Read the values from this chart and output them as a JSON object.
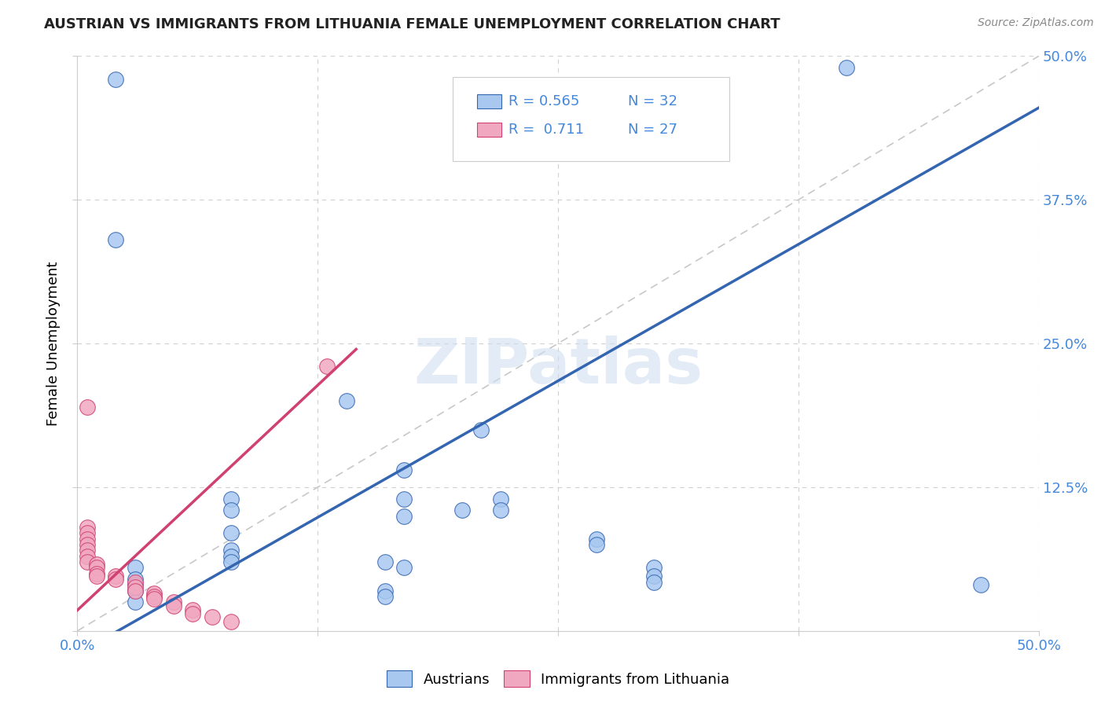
{
  "title": "AUSTRIAN VS IMMIGRANTS FROM LITHUANIA FEMALE UNEMPLOYMENT CORRELATION CHART",
  "source": "Source: ZipAtlas.com",
  "ylabel": "Female Unemployment",
  "xlim": [
    0.0,
    0.5
  ],
  "ylim": [
    0.0,
    0.5
  ],
  "blue_color": "#a8c8f0",
  "pink_color": "#f0a8c0",
  "blue_line_color": "#3465b0",
  "pink_line_color": "#d04070",
  "diagonal_color": "#c8c8c8",
  "r_blue": "0.565",
  "n_blue": "32",
  "r_pink": "0.711",
  "n_pink": "27",
  "blue_scatter": [
    [
      0.02,
      0.48
    ],
    [
      0.4,
      0.49
    ],
    [
      0.02,
      0.34
    ],
    [
      0.14,
      0.2
    ],
    [
      0.21,
      0.175
    ],
    [
      0.17,
      0.14
    ],
    [
      0.17,
      0.115
    ],
    [
      0.17,
      0.1
    ],
    [
      0.08,
      0.115
    ],
    [
      0.08,
      0.105
    ],
    [
      0.22,
      0.115
    ],
    [
      0.08,
      0.085
    ],
    [
      0.2,
      0.105
    ],
    [
      0.22,
      0.105
    ],
    [
      0.08,
      0.07
    ],
    [
      0.08,
      0.065
    ],
    [
      0.08,
      0.06
    ],
    [
      0.16,
      0.06
    ],
    [
      0.17,
      0.055
    ],
    [
      0.03,
      0.055
    ],
    [
      0.03,
      0.045
    ],
    [
      0.03,
      0.04
    ],
    [
      0.03,
      0.035
    ],
    [
      0.16,
      0.035
    ],
    [
      0.16,
      0.03
    ],
    [
      0.27,
      0.08
    ],
    [
      0.27,
      0.075
    ],
    [
      0.03,
      0.025
    ],
    [
      0.3,
      0.055
    ],
    [
      0.3,
      0.048
    ],
    [
      0.3,
      0.042
    ],
    [
      0.47,
      0.04
    ]
  ],
  "pink_scatter": [
    [
      0.005,
      0.195
    ],
    [
      0.13,
      0.23
    ],
    [
      0.005,
      0.09
    ],
    [
      0.005,
      0.085
    ],
    [
      0.005,
      0.08
    ],
    [
      0.005,
      0.075
    ],
    [
      0.005,
      0.07
    ],
    [
      0.005,
      0.065
    ],
    [
      0.005,
      0.06
    ],
    [
      0.01,
      0.058
    ],
    [
      0.01,
      0.055
    ],
    [
      0.01,
      0.05
    ],
    [
      0.01,
      0.048
    ],
    [
      0.02,
      0.048
    ],
    [
      0.02,
      0.045
    ],
    [
      0.03,
      0.042
    ],
    [
      0.03,
      0.038
    ],
    [
      0.03,
      0.035
    ],
    [
      0.04,
      0.033
    ],
    [
      0.04,
      0.03
    ],
    [
      0.04,
      0.028
    ],
    [
      0.05,
      0.025
    ],
    [
      0.05,
      0.022
    ],
    [
      0.06,
      0.018
    ],
    [
      0.06,
      0.015
    ],
    [
      0.07,
      0.012
    ],
    [
      0.08,
      0.008
    ]
  ],
  "blue_line": [
    [
      0.0,
      -0.02
    ],
    [
      0.5,
      0.455
    ]
  ],
  "pink_line": [
    [
      0.0,
      0.018
    ],
    [
      0.145,
      0.245
    ]
  ],
  "watermark": "ZIPatlas",
  "background_color": "#ffffff",
  "grid_color": "#d0d0d0",
  "tick_color": "#4488dd",
  "title_fontsize": 13,
  "source_fontsize": 10,
  "axis_fontsize": 13
}
